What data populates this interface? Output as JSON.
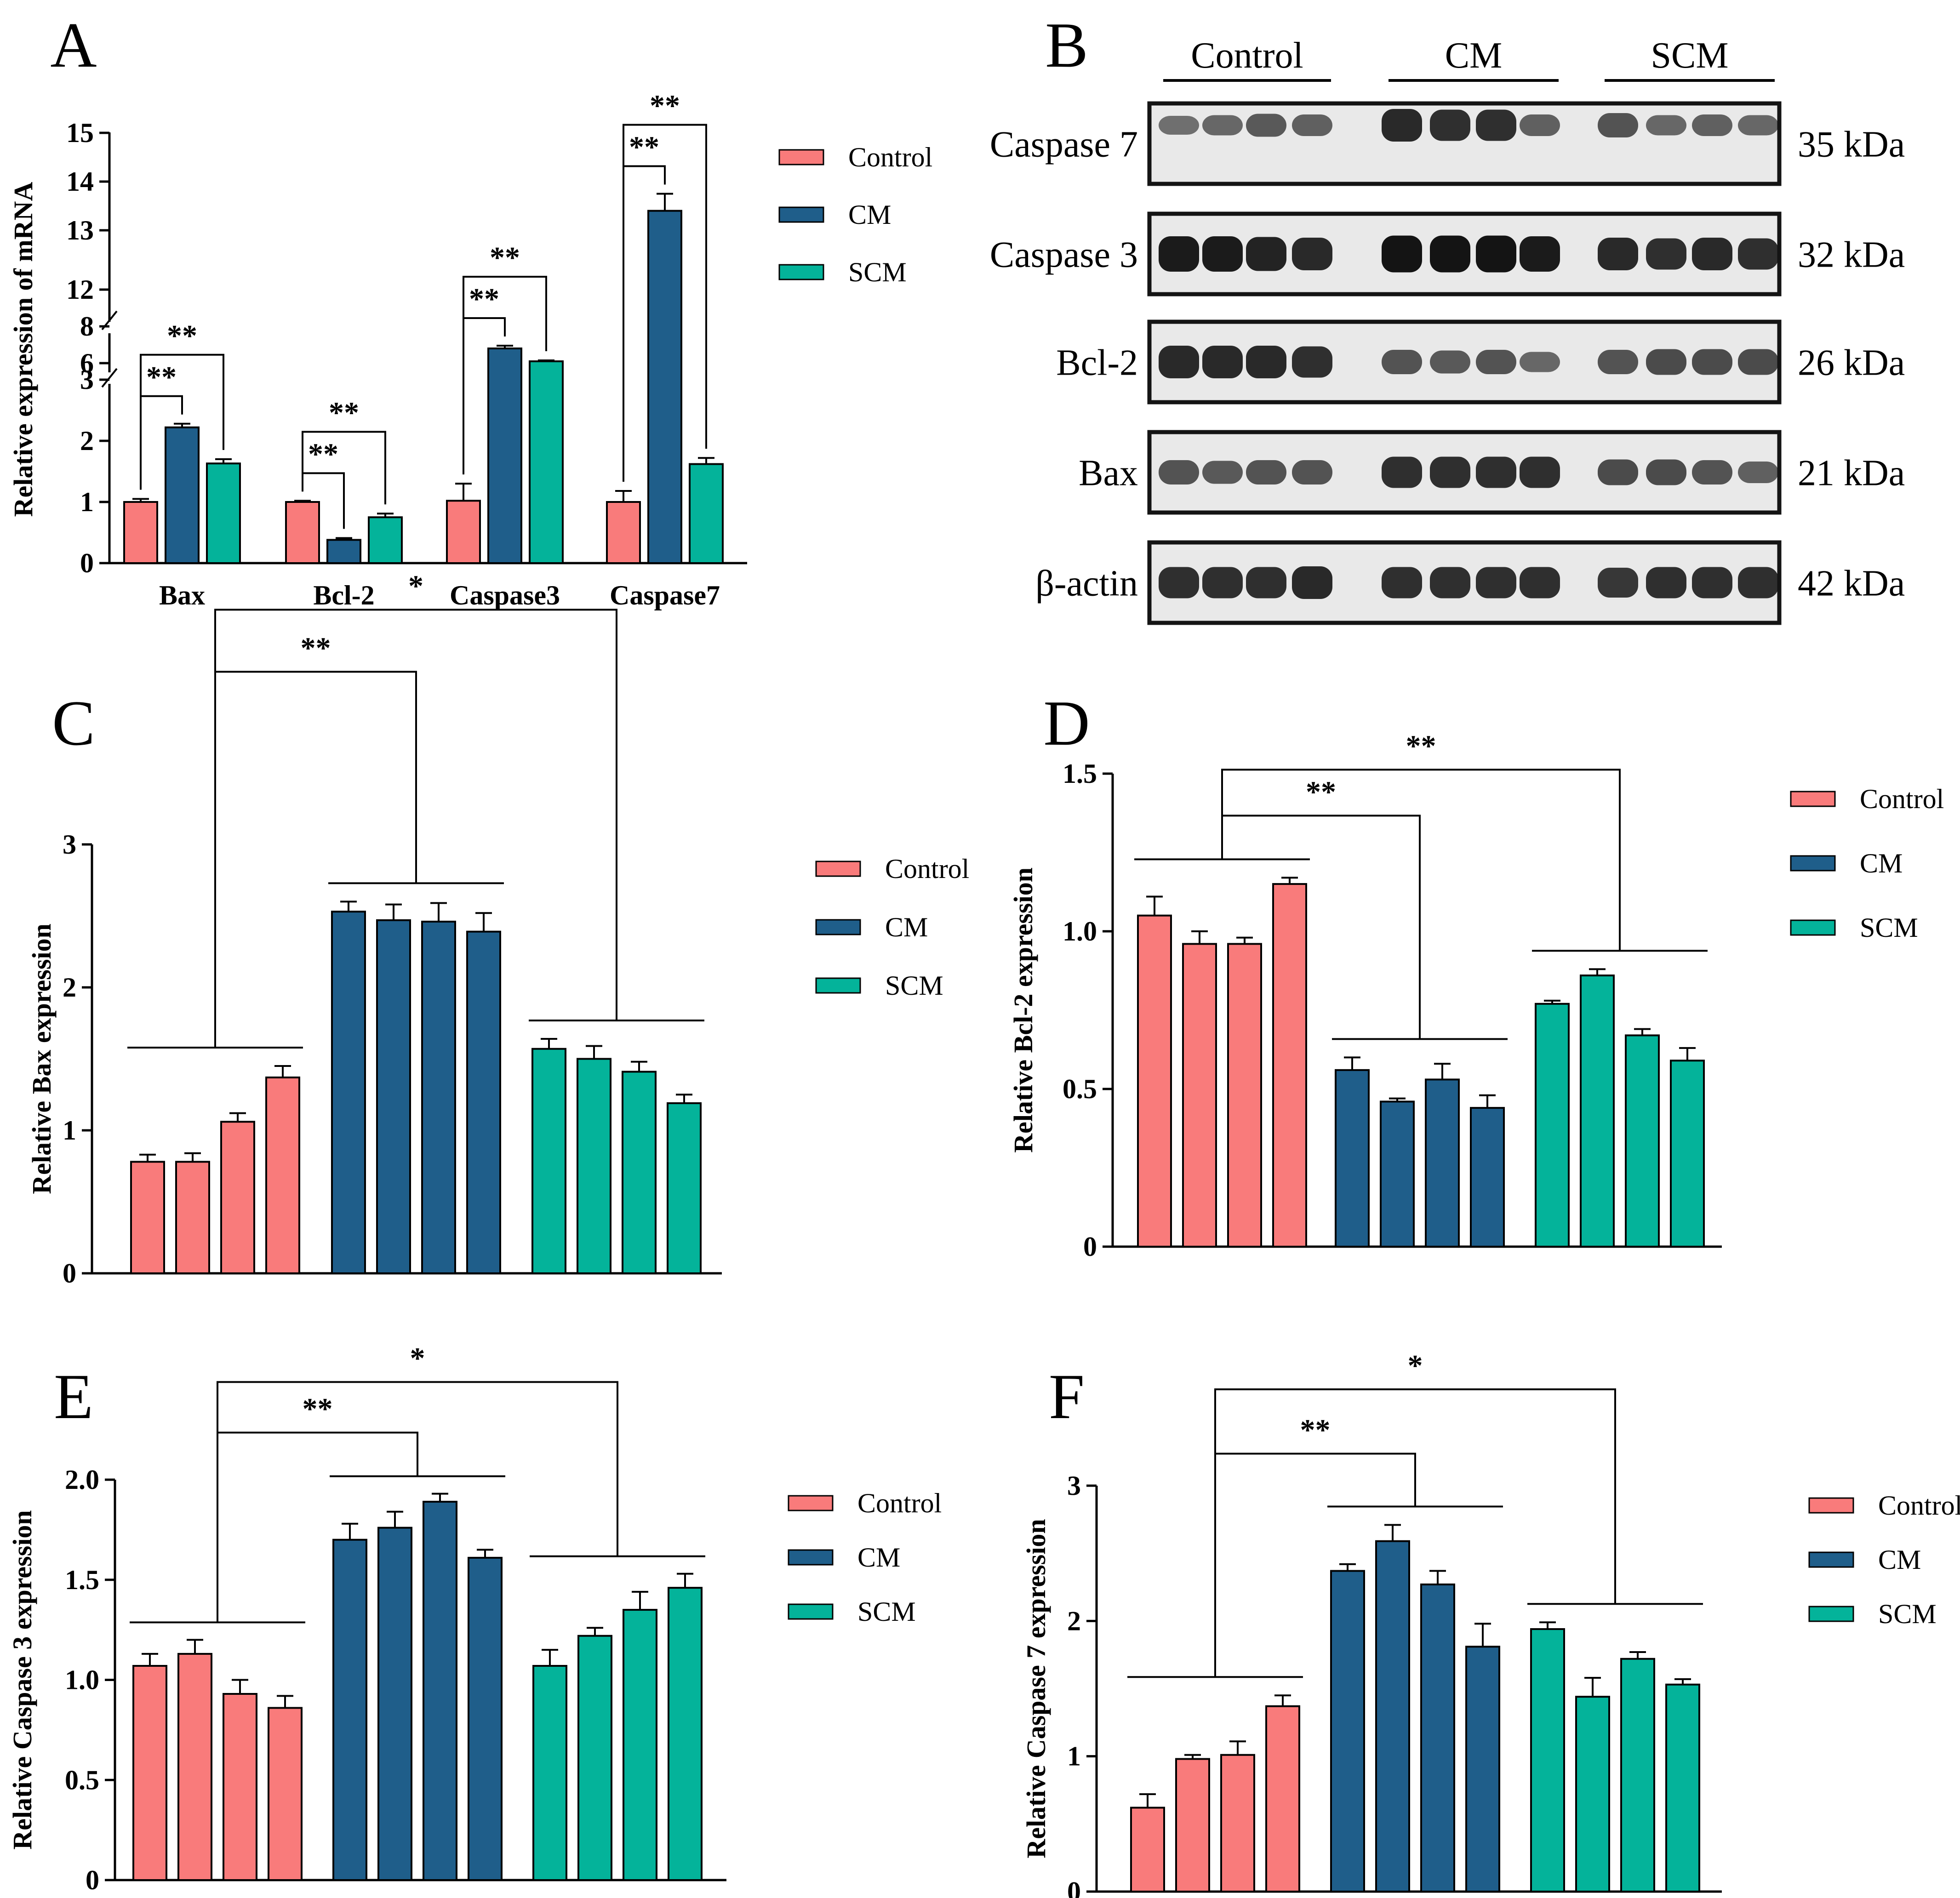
{
  "colors": {
    "control": "#F97B7B",
    "cm": "#1F5E8A",
    "scm": "#04B39A",
    "axis": "#000000",
    "blot_bg": "#e9e9e9",
    "band": "#141414"
  },
  "panel_labels": [
    "A",
    "B",
    "C",
    "D",
    "E",
    "F"
  ],
  "legend_labels": [
    "Control",
    "CM",
    "SCM"
  ],
  "chart_data": [
    {
      "panel": "A",
      "type": "bar",
      "title": "",
      "ylabel": "Relative expression of mRNA",
      "xlabel": "",
      "categories": [
        "Bax",
        "Bcl-2",
        "Caspase3",
        "Caspase7"
      ],
      "series": [
        {
          "name": "Control",
          "values": [
            1.0,
            1.0,
            1.02,
            1.0
          ],
          "errors": [
            0.05,
            0.02,
            0.28,
            0.18
          ]
        },
        {
          "name": "CM",
          "values": [
            2.22,
            0.38,
            6.8,
            13.4
          ],
          "errors": [
            0.06,
            0.03,
            0.15,
            0.35
          ]
        },
        {
          "name": "SCM",
          "values": [
            1.63,
            0.75,
            6.1,
            1.62
          ],
          "errors": [
            0.07,
            0.06,
            0.05,
            0.1
          ]
        }
      ],
      "axis_break": {
        "segments": [
          [
            0,
            3
          ],
          [
            3,
            6
          ],
          [
            6,
            8
          ],
          [
            12,
            15
          ]
        ]
      },
      "yticks": [
        "0",
        "1",
        "2",
        "3",
        "6",
        "8",
        "12",
        "13",
        "14",
        "15"
      ],
      "grid": false,
      "legend": "right",
      "significance": [
        "**",
        "**",
        "**",
        "**",
        "**",
        "**",
        "**",
        "**"
      ]
    },
    {
      "panel": "C",
      "type": "bar",
      "ylabel": "Relative Bax expression",
      "ylim": [
        0,
        3
      ],
      "yticks": [
        "0",
        "1",
        "2",
        "3"
      ],
      "groups": [
        "Control",
        "CM",
        "SCM"
      ],
      "series": [
        {
          "name": "Control",
          "values": [
            0.78,
            0.78,
            1.06,
            1.37
          ],
          "errors": [
            0.05,
            0.06,
            0.06,
            0.08
          ]
        },
        {
          "name": "CM",
          "values": [
            2.53,
            2.47,
            2.46,
            2.39
          ],
          "errors": [
            0.07,
            0.11,
            0.13,
            0.13
          ]
        },
        {
          "name": "SCM",
          "values": [
            1.57,
            1.5,
            1.41,
            1.19
          ],
          "errors": [
            0.07,
            0.09,
            0.07,
            0.06
          ]
        }
      ],
      "significance": [
        "**",
        "*"
      ],
      "legend": "right"
    },
    {
      "panel": "D",
      "type": "bar",
      "ylabel": "Relative Bcl-2 expression",
      "ylim": [
        0,
        1.5
      ],
      "yticks": [
        "0",
        "0.5",
        "1.0",
        "1.5"
      ],
      "groups": [
        "Control",
        "CM",
        "SCM"
      ],
      "series": [
        {
          "name": "Control",
          "values": [
            1.05,
            0.96,
            0.96,
            1.15
          ],
          "errors": [
            0.06,
            0.04,
            0.02,
            0.02
          ]
        },
        {
          "name": "CM",
          "values": [
            0.56,
            0.46,
            0.53,
            0.44
          ],
          "errors": [
            0.04,
            0.01,
            0.05,
            0.04
          ]
        },
        {
          "name": "SCM",
          "values": [
            0.77,
            0.86,
            0.67,
            0.59
          ],
          "errors": [
            0.01,
            0.02,
            0.02,
            0.04
          ]
        }
      ],
      "significance": [
        "**",
        "**"
      ],
      "legend": "right"
    },
    {
      "panel": "E",
      "type": "bar",
      "ylabel": "Relative Caspase 3 expression",
      "ylim": [
        0,
        2.0
      ],
      "yticks": [
        "0",
        "0.5",
        "1.0",
        "1.5",
        "2.0"
      ],
      "groups": [
        "Control",
        "CM",
        "SCM"
      ],
      "series": [
        {
          "name": "Control",
          "values": [
            1.07,
            1.13,
            0.93,
            0.86
          ],
          "errors": [
            0.06,
            0.07,
            0.07,
            0.06
          ]
        },
        {
          "name": "CM",
          "values": [
            1.7,
            1.76,
            1.89,
            1.61
          ],
          "errors": [
            0.08,
            0.08,
            0.04,
            0.04
          ]
        },
        {
          "name": "SCM",
          "values": [
            1.07,
            1.22,
            1.35,
            1.46
          ],
          "errors": [
            0.08,
            0.04,
            0.09,
            0.07
          ]
        }
      ],
      "significance": [
        "**",
        "*"
      ],
      "legend": "right"
    },
    {
      "panel": "F",
      "type": "bar",
      "ylabel": "Relative Caspase 7 expression",
      "ylim": [
        0,
        3
      ],
      "yticks": [
        "0",
        "1",
        "2",
        "3"
      ],
      "groups": [
        "Control",
        "CM",
        "SCM"
      ],
      "series": [
        {
          "name": "Control",
          "values": [
            0.62,
            0.98,
            1.01,
            1.37
          ],
          "errors": [
            0.1,
            0.03,
            0.1,
            0.08
          ]
        },
        {
          "name": "CM",
          "values": [
            2.37,
            2.59,
            2.27,
            1.81
          ],
          "errors": [
            0.05,
            0.12,
            0.1,
            0.17
          ]
        },
        {
          "name": "SCM",
          "values": [
            1.94,
            1.44,
            1.72,
            1.53
          ],
          "errors": [
            0.05,
            0.14,
            0.05,
            0.04
          ]
        }
      ],
      "significance": [
        "**",
        "*"
      ],
      "legend": "right"
    }
  ],
  "western_blot": {
    "groups": [
      "Control",
      "CM",
      "SCM"
    ],
    "rows": [
      {
        "protein": "Caspase 7",
        "size": "35 kDa",
        "intensities": [
          0.35,
          0.4,
          0.5,
          0.45,
          0.85,
          0.8,
          0.8,
          0.45,
          0.55,
          0.4,
          0.45,
          0.4
        ]
      },
      {
        "protein": "Caspase 3",
        "size": "32 kDa",
        "intensities": [
          0.95,
          0.95,
          0.9,
          0.85,
          1.0,
          1.0,
          1.0,
          0.95,
          0.85,
          0.8,
          0.85,
          0.8
        ]
      },
      {
        "protein": "Bcl-2",
        "size": "26 kDa",
        "intensities": [
          0.85,
          0.85,
          0.85,
          0.8,
          0.55,
          0.5,
          0.55,
          0.4,
          0.55,
          0.6,
          0.6,
          0.6
        ]
      },
      {
        "protein": "Bax",
        "size": "21 kDa",
        "intensities": [
          0.55,
          0.5,
          0.55,
          0.55,
          0.8,
          0.8,
          0.8,
          0.8,
          0.6,
          0.6,
          0.55,
          0.45
        ]
      },
      {
        "protein": "β-actin",
        "size": "42 kDa",
        "intensities": [
          0.8,
          0.8,
          0.8,
          0.85,
          0.8,
          0.8,
          0.8,
          0.8,
          0.75,
          0.8,
          0.8,
          0.8
        ]
      }
    ]
  }
}
